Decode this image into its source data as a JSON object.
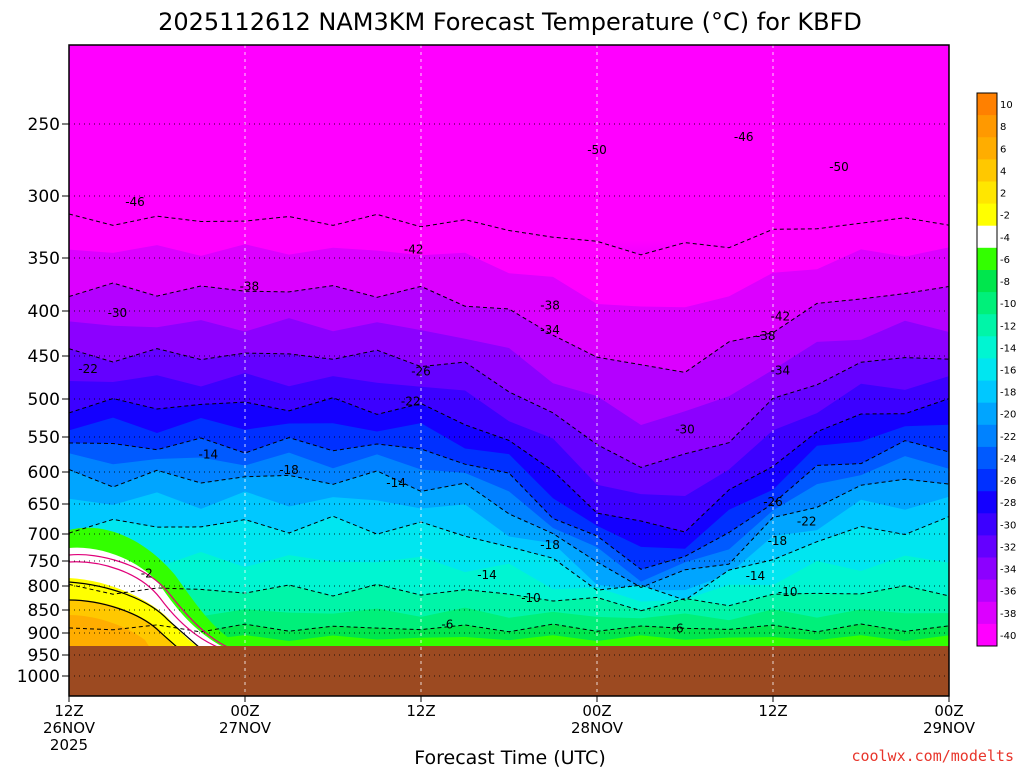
{
  "chart_data": {
    "type": "heatmap",
    "title": "2025112612 NAM3KM Forecast Temperature (°C) for KBFD",
    "xlabel": "Forecast Time (UTC)",
    "ylabel": "",
    "credit": "coolwx.com/modelts",
    "y_ticks": [
      "250",
      "300",
      "350",
      "400",
      "450",
      "500",
      "550",
      "600",
      "650",
      "700",
      "750",
      "800",
      "850",
      "900",
      "950",
      "1000"
    ],
    "y_tick_values": [
      250,
      300,
      350,
      400,
      450,
      500,
      550,
      600,
      650,
      700,
      750,
      800,
      850,
      900,
      950,
      1000
    ],
    "ylim": [
      200,
      1050
    ],
    "xlim": [
      0,
      60
    ],
    "x_ticks": [
      {
        "hour": 0,
        "line1": "12Z",
        "line2": "26NOV",
        "line3": "2025"
      },
      {
        "hour": 12,
        "line1": "00Z",
        "line2": "27NOV",
        "line3": ""
      },
      {
        "hour": 24,
        "line1": "12Z",
        "line2": "",
        "line3": ""
      },
      {
        "hour": 36,
        "line1": "00Z",
        "line2": "28NOV",
        "line3": ""
      },
      {
        "hour": 48,
        "line1": "12Z",
        "line2": "",
        "line3": ""
      },
      {
        "hour": 60,
        "line1": "00Z",
        "line2": "29NOV",
        "line3": ""
      }
    ],
    "grid": true,
    "colorbar": {
      "labels": [
        "10",
        "8",
        "6",
        "4",
        "2",
        "-2",
        "-4",
        "-6",
        "-8",
        "-10",
        "-12",
        "-14",
        "-16",
        "-18",
        "-20",
        "-22",
        "-24",
        "-26",
        "-28",
        "-30",
        "-32",
        "-34",
        "-36",
        "-38",
        "-40"
      ],
      "colors": [
        "#ff8000",
        "#ff9900",
        "#ffad00",
        "#ffc800",
        "#ffe600",
        "#ffff00",
        "#ffffff",
        "#33ff00",
        "#00e64d",
        "#00f07a",
        "#00f5a8",
        "#00f5d2",
        "#00e6f0",
        "#00c8ff",
        "#00a5ff",
        "#0082ff",
        "#005aff",
        "#0030ff",
        "#1400ff",
        "#3c00ff",
        "#6400ff",
        "#8c00ff",
        "#b400ff",
        "#dc00ff",
        "#ff00ff"
      ]
    },
    "contour_labels": [
      {
        "text": "-46",
        "hour": 4.5,
        "p": 305
      },
      {
        "text": "-50",
        "hour": 36.0,
        "p": 268
      },
      {
        "text": "-46",
        "hour": 46.0,
        "p": 259
      },
      {
        "text": "-50",
        "hour": 52.5,
        "p": 280
      },
      {
        "text": "-42",
        "hour": 23.5,
        "p": 343
      },
      {
        "text": "-38",
        "hour": 12.3,
        "p": 377
      },
      {
        "text": "-30",
        "hour": 3.3,
        "p": 402
      },
      {
        "text": "-38",
        "hour": 32.8,
        "p": 395
      },
      {
        "text": "-34",
        "hour": 32.8,
        "p": 421
      },
      {
        "text": "-42",
        "hour": 48.5,
        "p": 406
      },
      {
        "text": "-38",
        "hour": 47.5,
        "p": 428
      },
      {
        "text": "-22",
        "hour": 1.3,
        "p": 465
      },
      {
        "text": "-26",
        "hour": 24.0,
        "p": 468
      },
      {
        "text": "-34",
        "hour": 48.5,
        "p": 467
      },
      {
        "text": "-22",
        "hour": 23.3,
        "p": 503
      },
      {
        "text": "-30",
        "hour": 42.0,
        "p": 540
      },
      {
        "text": "-14",
        "hour": 9.5,
        "p": 575
      },
      {
        "text": "-18",
        "hour": 15.0,
        "p": 597
      },
      {
        "text": "-14",
        "hour": 22.3,
        "p": 617
      },
      {
        "text": "-26",
        "hour": 48.0,
        "p": 647
      },
      {
        "text": "-22",
        "hour": 50.3,
        "p": 679
      },
      {
        "text": "-18",
        "hour": 32.8,
        "p": 720
      },
      {
        "text": "-18",
        "hour": 48.3,
        "p": 713
      },
      {
        "text": "-2",
        "hour": 5.3,
        "p": 775
      },
      {
        "text": "-14",
        "hour": 28.5,
        "p": 778
      },
      {
        "text": "-14",
        "hour": 46.8,
        "p": 780
      },
      {
        "text": "-10",
        "hour": 31.5,
        "p": 825
      },
      {
        "text": "-10",
        "hour": 49.0,
        "p": 812
      },
      {
        "text": "-6",
        "hour": 25.8,
        "p": 881
      },
      {
        "text": "-6",
        "hour": 41.5,
        "p": 890
      }
    ]
  }
}
